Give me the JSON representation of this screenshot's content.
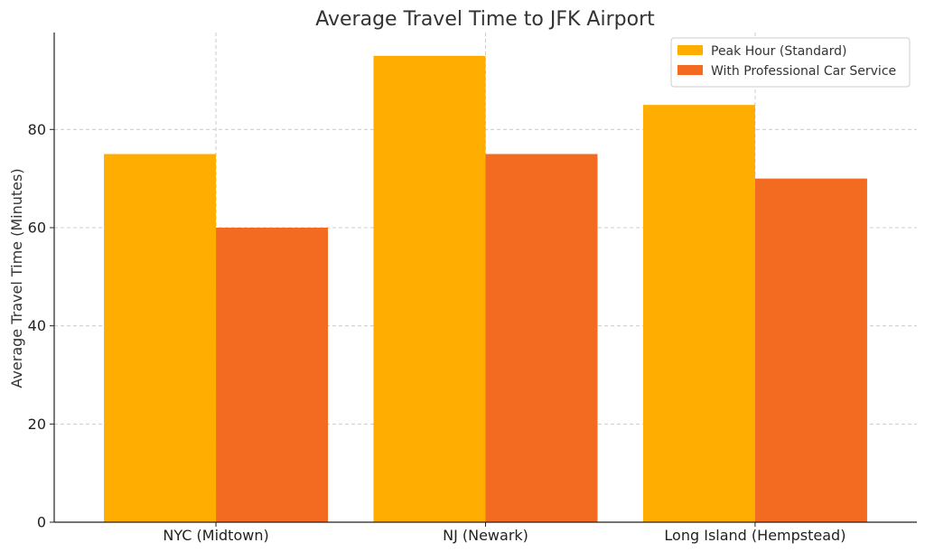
{
  "chart_data": {
    "type": "bar",
    "title": "Average Travel Time to JFK Airport",
    "xlabel": "",
    "ylabel": "Average Travel Time (Minutes)",
    "categories": [
      "NYC (Midtown)",
      "NJ (Newark)",
      "Long Island (Hempstead)"
    ],
    "series": [
      {
        "name": "Peak Hour (Standard)",
        "values": [
          75,
          95,
          85
        ],
        "color": "#ffad00"
      },
      {
        "name": "With Professional Car Service",
        "values": [
          60,
          75,
          70
        ],
        "color": "#f26b21"
      }
    ],
    "yticks": [
      0,
      20,
      40,
      60,
      80
    ],
    "ylim": [
      0,
      99.75
    ],
    "grid": true,
    "legend_position": "top-right"
  }
}
